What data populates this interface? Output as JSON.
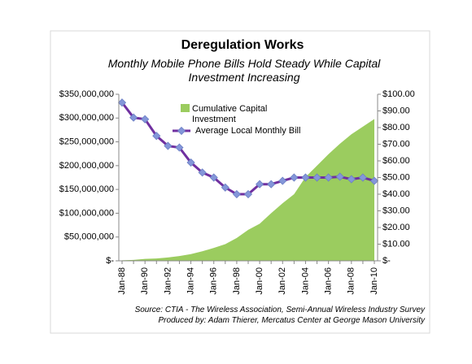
{
  "chart_data": {
    "type": "combo",
    "title": "Deregulation Works",
    "subtitle": "Monthly Mobile Phone Bills Hold Steady While Capital Investment Increasing",
    "annotations": [
      "Source: CTIA - The Wireless Association, Semi-Annual Wireless Industry Survey",
      "Produced by: Adam Thierer, Mercatus Center at George Mason University"
    ],
    "categories": [
      "Jan-88",
      null,
      "Jan-90",
      null,
      "Jan-92",
      null,
      "Jan-94",
      null,
      "Jan-96",
      null,
      "Jan-98",
      null,
      "Jan-00",
      null,
      "Jan-02",
      null,
      "Jan-04",
      null,
      "Jan-06",
      null,
      "Jan-08",
      null,
      "Jan-10"
    ],
    "series": [
      {
        "name": "Cumulative Capital Investment",
        "type": "area",
        "color": "#9bcc5f",
        "axis": "y",
        "values": [
          1000000,
          2000000,
          4000000,
          5000000,
          7000000,
          10000000,
          14000000,
          20000000,
          27000000,
          35000000,
          48000000,
          65000000,
          78000000,
          100000000,
          121000000,
          140000000,
          176000000,
          200000000,
          224000000,
          246000000,
          266000000,
          282000000,
          298000000
        ]
      },
      {
        "name": "Average Local Monthly Bill",
        "type": "line",
        "color": "#7030a0",
        "marker_color": "#8496d9",
        "axis": "y2",
        "values": [
          95,
          86,
          85,
          75,
          69,
          68,
          59,
          53,
          50,
          44,
          40,
          40,
          46,
          46,
          48,
          50,
          50,
          50,
          50,
          50.5,
          49,
          50,
          48
        ]
      }
    ],
    "ylim": [
      0,
      350000000
    ],
    "yticks": [
      {
        "value": 0,
        "label": "$-"
      },
      {
        "value": 50000000,
        "label": "$50,000,000"
      },
      {
        "value": 100000000,
        "label": "$100,000,000"
      },
      {
        "value": 150000000,
        "label": "$150,000,000"
      },
      {
        "value": 200000000,
        "label": "$200,000,000"
      },
      {
        "value": 250000000,
        "label": "$250,000,000"
      },
      {
        "value": 300000000,
        "label": "$300,000,000"
      },
      {
        "value": 350000000,
        "label": "$350,000,000"
      }
    ],
    "y2lim": [
      0,
      100
    ],
    "y2ticks": [
      {
        "value": 0,
        "label": "$-"
      },
      {
        "value": 10,
        "label": "$10.00"
      },
      {
        "value": 20,
        "label": "$20.00"
      },
      {
        "value": 30,
        "label": "$30.00"
      },
      {
        "value": 40,
        "label": "$40.00"
      },
      {
        "value": 50,
        "label": "$50.00"
      },
      {
        "value": 60,
        "label": "$60.00"
      },
      {
        "value": 70,
        "label": "$70.00"
      },
      {
        "value": 80,
        "label": "$80.00"
      },
      {
        "value": 90,
        "label": "$90.00"
      },
      {
        "value": 100,
        "label": "$100.00"
      }
    ],
    "grid": false
  }
}
